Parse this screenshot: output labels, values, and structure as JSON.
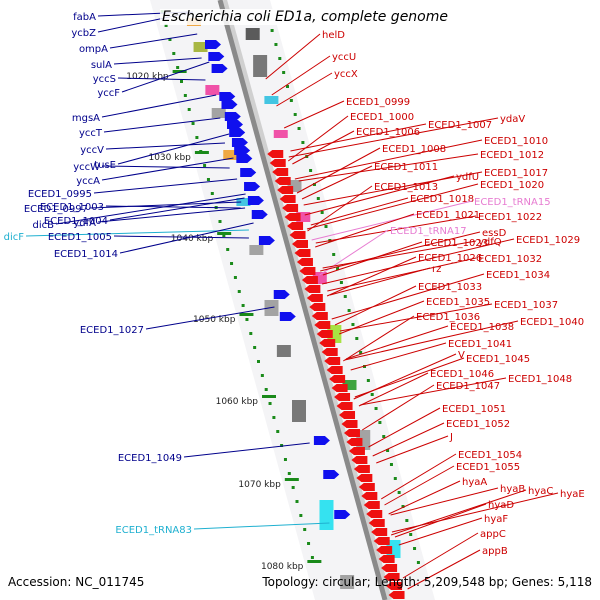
{
  "title": "Escherichia coli ED1a, complete genome",
  "footer": {
    "accession": "Accession: NC_011745",
    "summary": "Topology: circular; Length: 5,209,548 bp; Genes: 5,118"
  },
  "colors": {
    "plus_label": "#00008b",
    "minus_label": "#cc0000",
    "trna_plus_label": "#1fb0d0",
    "trna_minus_label": "#e77cd1",
    "plus_arrow": "#1010ee",
    "minus_arrow": "#ee1010",
    "backbone": "#8a8a8a",
    "tick": "#1a8a1a"
  },
  "ruler": [
    "1020 kbp",
    "1030 kbp",
    "1040 kbp",
    "1050 kbp",
    "1060 kbp",
    "1070 kbp",
    "1080 kbp"
  ],
  "plus_genes": [
    "fabA",
    "ycbZ",
    "ompA",
    "sulA",
    "yccS",
    "yccF",
    "mgsA",
    "yccT",
    "yccV",
    "yccW",
    "tusE",
    "yccA",
    "ECED1_0995",
    "ECED1_0997",
    "ECED1_1003",
    "dicB",
    "ECED1_1004",
    "ydfA",
    "dicF",
    "ECED1_1005",
    "ECED1_1014",
    "ECED1_1027",
    "ECED1_1049",
    "ECED1_tRNA83"
  ],
  "minus_genes": [
    "helD",
    "yccU",
    "yccX",
    "ECED1_0999",
    "ECED1_1000",
    "ydaV",
    "ECED1_1006",
    "ECED1_1007",
    "ECED1_1008",
    "ECED1_1010",
    "ECED1_1011",
    "ECED1_1012",
    "ECED1_1013",
    "ydfU",
    "ECED1_1017",
    "ECED1_1018",
    "ECED1_1020",
    "ECED1_tRNA15",
    "ECED1_1021",
    "ECED1_1022",
    "ECED1_tRNA17",
    "essD",
    "ECED1_1023",
    "ydfQ",
    "ECED1_1029",
    "ECED1_1026",
    "ECED1_1032",
    "rz",
    "ECED1_1034",
    "ECED1_1033",
    "ECED1_1035",
    "ECED1_1037",
    "ECED1_1036",
    "ECED1_1040",
    "ECED1_1038",
    "ECED1_1041",
    "V",
    "ECED1_1045",
    "ECED1_1046",
    "ECED1_1048",
    "ECED1_1047",
    "ECED1_1051",
    "ECED1_1052",
    "J",
    "ECED1_1054",
    "ECED1_1055",
    "hyaA",
    "hyaB",
    "hyaC",
    "hyaE",
    "hyaD",
    "hyaF",
    "appC",
    "appB"
  ]
}
